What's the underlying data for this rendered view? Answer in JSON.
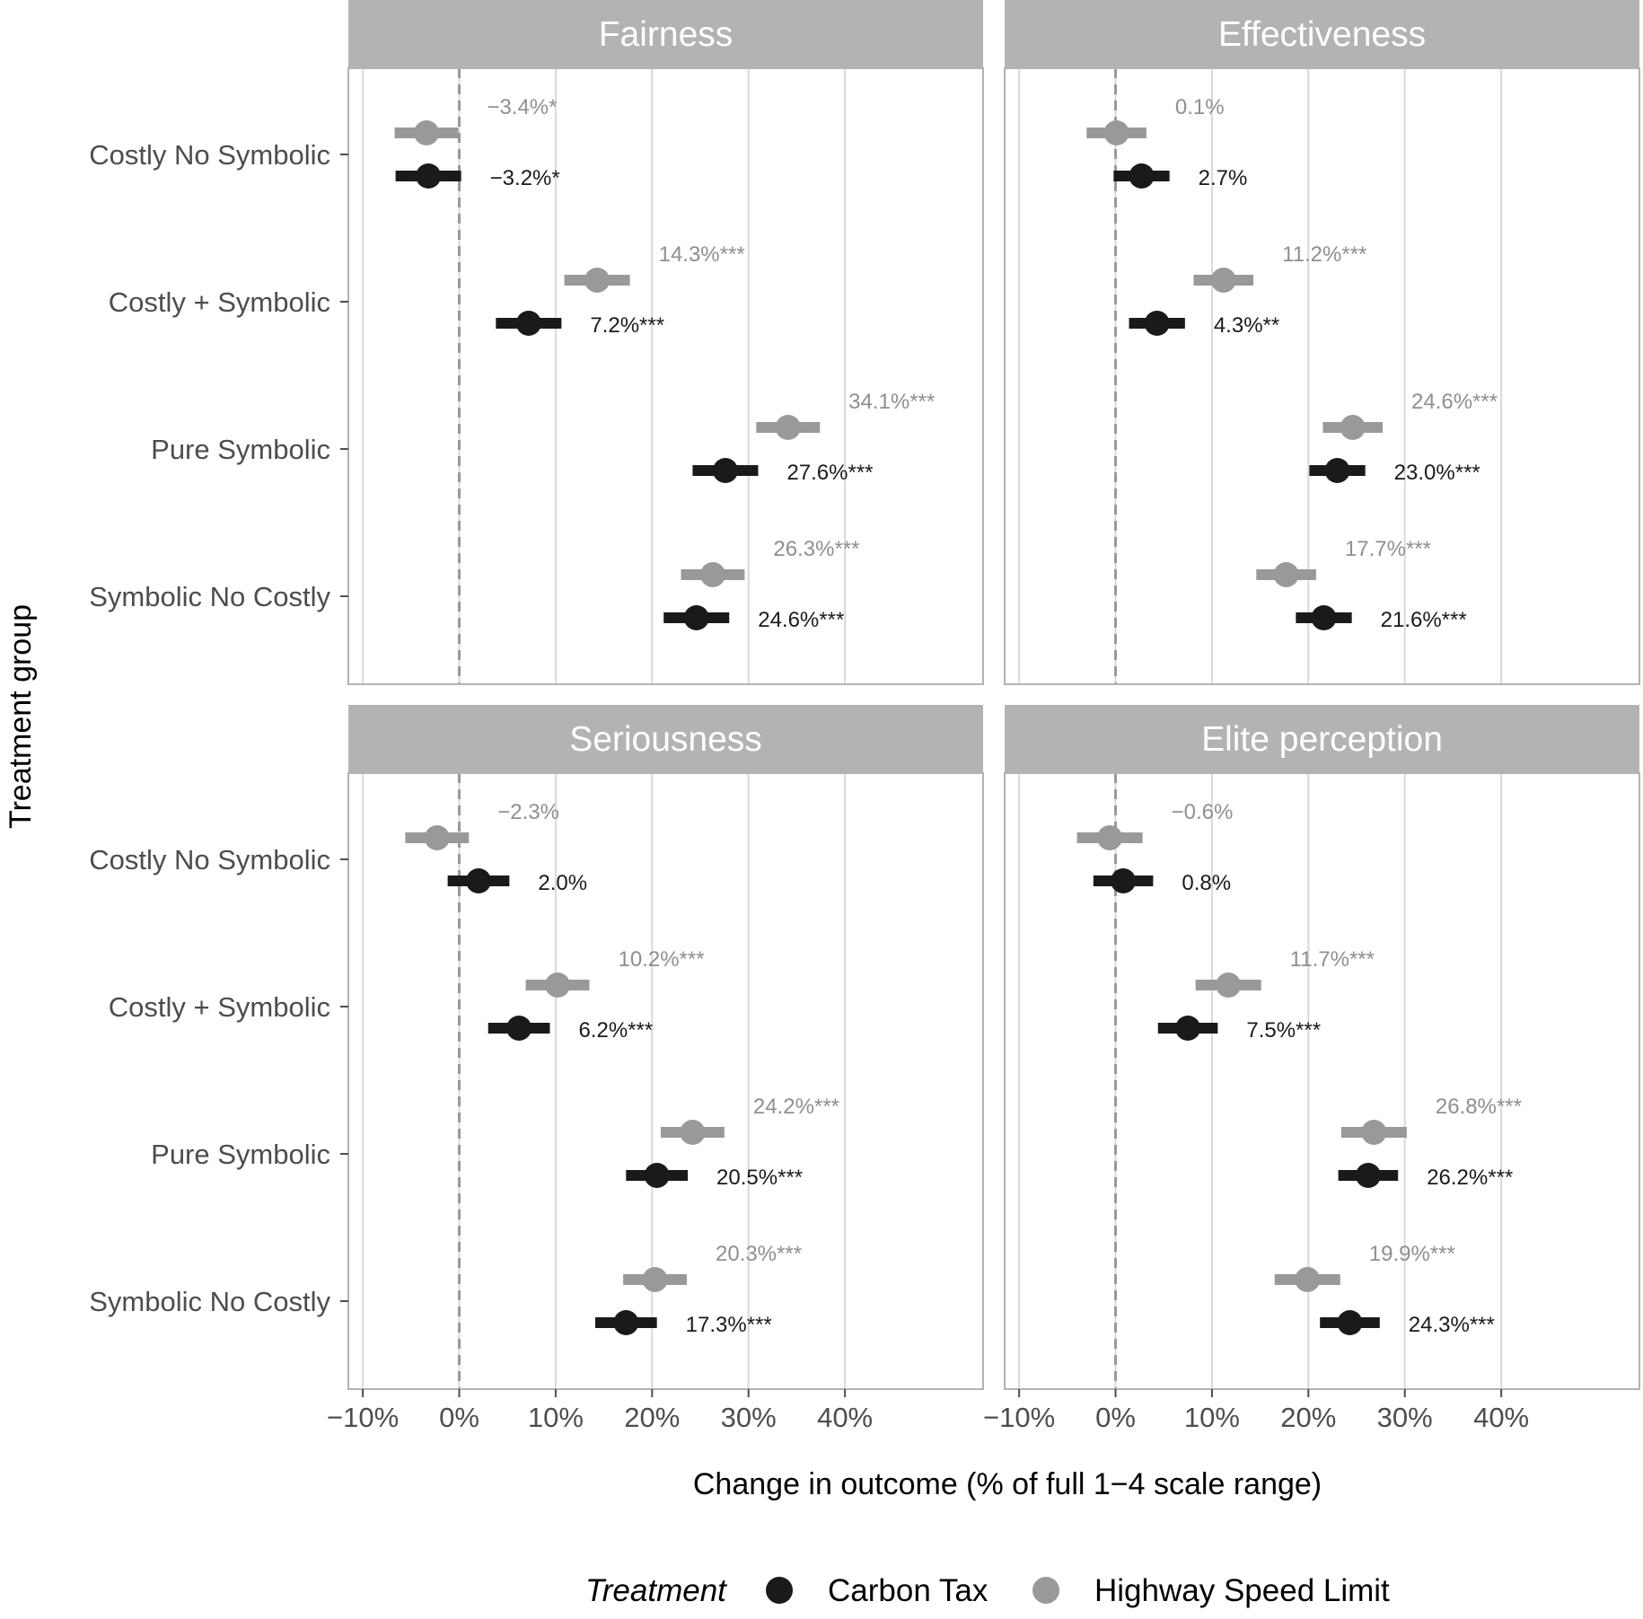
{
  "chart_data": {
    "type": "forest",
    "xlabel": "Change in outcome (% of full 1−4 scale range)",
    "ylabel": "Treatment group",
    "xlim": [
      -0.115,
      0.535
    ],
    "xticks": [
      -0.1,
      0.0,
      0.1,
      0.2,
      0.3,
      0.4
    ],
    "xtick_labels": [
      "−10%",
      "0%",
      "10%",
      "20%",
      "30%",
      "40%"
    ],
    "categories": [
      "Costly No Symbolic",
      "Costly + Symbolic",
      "Pure Symbolic",
      "Symbolic No Costly"
    ],
    "reference_line": 0,
    "legend": {
      "title": "Treatment",
      "entries": [
        {
          "name": "Carbon Tax",
          "color": "#1a1a1a"
        },
        {
          "name": "Highway Speed Limit",
          "color": "#999999"
        }
      ],
      "position": "bottom"
    },
    "panels": [
      {
        "title": "Fairness",
        "series": [
          {
            "name": "Highway Speed Limit",
            "estimates": [
              -0.034,
              0.143,
              0.341,
              0.263
            ],
            "ci_low": [
              -0.067,
              0.109,
              0.308,
              0.23
            ],
            "ci_high": [
              -0.001,
              0.177,
              0.374,
              0.296
            ],
            "labels": [
              "−3.4%*",
              "14.3%***",
              "34.1%***",
              "26.3%***"
            ]
          },
          {
            "name": "Carbon Tax",
            "estimates": [
              -0.032,
              0.072,
              0.276,
              0.246
            ],
            "ci_low": [
              -0.066,
              0.038,
              0.242,
              0.212
            ],
            "ci_high": [
              0.002,
              0.106,
              0.31,
              0.28
            ],
            "labels": [
              "−3.2%*",
              "7.2%***",
              "27.6%***",
              "24.6%***"
            ]
          }
        ]
      },
      {
        "title": "Effectiveness",
        "series": [
          {
            "name": "Highway Speed Limit",
            "estimates": [
              0.001,
              0.112,
              0.246,
              0.177
            ],
            "ci_low": [
              -0.03,
              0.081,
              0.215,
              0.146
            ],
            "ci_high": [
              0.032,
              0.143,
              0.277,
              0.208
            ],
            "labels": [
              "0.1%",
              "11.2%***",
              "24.6%***",
              "17.7%***"
            ]
          },
          {
            "name": "Carbon Tax",
            "estimates": [
              0.027,
              0.043,
              0.23,
              0.216
            ],
            "ci_low": [
              -0.002,
              0.014,
              0.201,
              0.187
            ],
            "ci_high": [
              0.056,
              0.072,
              0.259,
              0.245
            ],
            "labels": [
              "2.7%",
              "4.3%**",
              "23.0%***",
              "21.6%***"
            ]
          }
        ]
      },
      {
        "title": "Seriousness",
        "series": [
          {
            "name": "Highway Speed Limit",
            "estimates": [
              -0.023,
              0.102,
              0.242,
              0.203
            ],
            "ci_low": [
              -0.056,
              0.069,
              0.209,
              0.17
            ],
            "ci_high": [
              0.01,
              0.135,
              0.275,
              0.236
            ],
            "labels": [
              "−2.3%",
              "10.2%***",
              "24.2%***",
              "20.3%***"
            ]
          },
          {
            "name": "Carbon Tax",
            "estimates": [
              0.02,
              0.062,
              0.205,
              0.173
            ],
            "ci_low": [
              -0.012,
              0.03,
              0.173,
              0.141
            ],
            "ci_high": [
              0.052,
              0.094,
              0.237,
              0.205
            ],
            "labels": [
              "2.0%",
              "6.2%***",
              "20.5%***",
              "17.3%***"
            ]
          }
        ]
      },
      {
        "title": "Elite perception",
        "series": [
          {
            "name": "Highway Speed Limit",
            "estimates": [
              -0.006,
              0.117,
              0.268,
              0.199
            ],
            "ci_low": [
              -0.04,
              0.083,
              0.234,
              0.165
            ],
            "ci_high": [
              0.028,
              0.151,
              0.302,
              0.233
            ],
            "labels": [
              "−0.6%",
              "11.7%***",
              "26.8%***",
              "19.9%***"
            ]
          },
          {
            "name": "Carbon Tax",
            "estimates": [
              0.008,
              0.075,
              0.262,
              0.243
            ],
            "ci_low": [
              -0.023,
              0.044,
              0.231,
              0.212
            ],
            "ci_high": [
              0.039,
              0.106,
              0.293,
              0.274
            ],
            "labels": [
              "0.8%",
              "7.5%***",
              "26.2%***",
              "24.3%***"
            ]
          }
        ]
      }
    ]
  }
}
